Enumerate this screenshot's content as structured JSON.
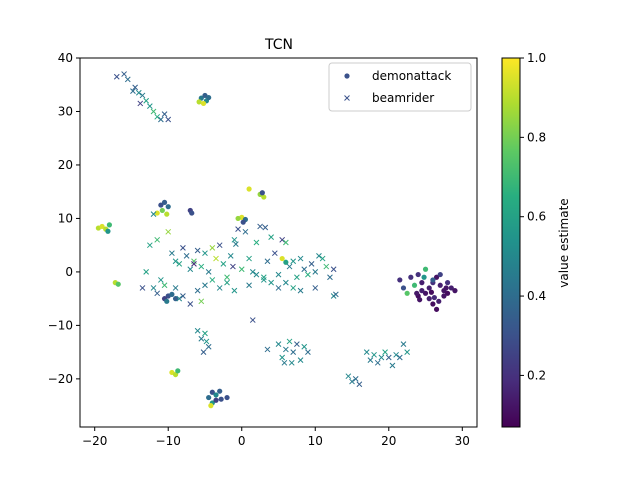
{
  "chart_data": {
    "type": "scatter",
    "title": "TCN",
    "xlabel": "",
    "ylabel": "",
    "xlim": [
      -22,
      32
    ],
    "ylim": [
      -29,
      40
    ],
    "x_ticks": [
      -20,
      -10,
      0,
      10,
      20,
      30
    ],
    "y_ticks": [
      -20,
      -10,
      0,
      10,
      20,
      30,
      40
    ],
    "grid": false,
    "legend_position": "top-right",
    "colorbar": {
      "label": "value estimate",
      "range": [
        0.07,
        1.0
      ],
      "ticks": [
        0.2,
        0.4,
        0.6,
        0.8,
        1.0
      ],
      "tick_labels": [
        "0.2",
        "0.4",
        "0.6",
        "0.8",
        "1.0"
      ],
      "colormap": "viridis"
    },
    "series": [
      {
        "name": "demonattack",
        "marker": "dot",
        "points": [
          [
            -5.5,
            32.5,
            0.45
          ],
          [
            -5.0,
            33.0,
            0.35
          ],
          [
            -4.8,
            32.0,
            0.5
          ],
          [
            -5.8,
            31.8,
            0.9
          ],
          [
            -5.2,
            31.5,
            0.95
          ],
          [
            -4.5,
            32.6,
            0.4
          ],
          [
            -10.5,
            13.0,
            0.35
          ],
          [
            -11.0,
            12.5,
            0.3
          ],
          [
            -10.8,
            11.5,
            0.8
          ],
          [
            -11.5,
            11.0,
            0.95
          ],
          [
            -10.0,
            12.2,
            0.4
          ],
          [
            -10.2,
            10.8,
            0.9
          ],
          [
            -7.0,
            11.5,
            0.25
          ],
          [
            -6.8,
            11.0,
            0.3
          ],
          [
            0.0,
            10.2,
            0.95
          ],
          [
            -0.5,
            10.0,
            0.85
          ],
          [
            0.5,
            9.8,
            0.4
          ],
          [
            0.2,
            9.3,
            0.3
          ],
          [
            1.0,
            15.5,
            0.95
          ],
          [
            2.5,
            14.5,
            0.85
          ],
          [
            3.0,
            14.0,
            0.9
          ],
          [
            2.8,
            14.8,
            0.3
          ],
          [
            -19.5,
            8.2,
            0.9
          ],
          [
            -19.0,
            8.5,
            0.95
          ],
          [
            -18.5,
            8.0,
            0.9
          ],
          [
            -18.0,
            8.8,
            0.7
          ],
          [
            -18.2,
            7.6,
            0.55
          ],
          [
            -17.2,
            -2.0,
            0.9
          ],
          [
            -16.8,
            -2.3,
            0.75
          ],
          [
            -9.5,
            -18.8,
            0.95
          ],
          [
            -9.0,
            -19.2,
            0.9
          ],
          [
            -8.7,
            -18.5,
            0.7
          ],
          [
            -4.0,
            -22.5,
            0.3
          ],
          [
            -3.5,
            -23.0,
            0.5
          ],
          [
            -3.0,
            -22.3,
            0.35
          ],
          [
            -4.5,
            -23.5,
            0.4
          ],
          [
            -2.8,
            -23.8,
            0.3
          ],
          [
            -2.0,
            -23.5,
            0.3
          ],
          [
            -4.0,
            -24.5,
            0.55
          ],
          [
            -4.2,
            -25.0,
            0.95
          ],
          [
            -3.5,
            -24.0,
            0.25
          ],
          [
            -10.0,
            -4.5,
            0.3
          ],
          [
            -10.5,
            -5.0,
            0.25
          ],
          [
            -9.5,
            -4.2,
            0.4
          ],
          [
            -10.2,
            -5.5,
            0.45
          ],
          [
            -9.0,
            -5.0,
            0.35
          ],
          [
            5.5,
            2.5,
            0.95
          ],
          [
            6.0,
            1.8,
            0.6
          ],
          [
            23.0,
            -1.0,
            0.2
          ],
          [
            24.0,
            -0.5,
            0.2
          ],
          [
            25.0,
            0.5,
            0.7
          ],
          [
            24.5,
            -2.0,
            0.15
          ],
          [
            25.5,
            -3.0,
            0.15
          ],
          [
            26.0,
            -2.0,
            0.2
          ],
          [
            26.5,
            -1.0,
            0.12
          ],
          [
            27.0,
            -2.5,
            0.15
          ],
          [
            27.5,
            -3.5,
            0.12
          ],
          [
            28.0,
            -4.0,
            0.1
          ],
          [
            28.5,
            -3.0,
            0.15
          ],
          [
            29.0,
            -3.5,
            0.12
          ],
          [
            25.0,
            -4.0,
            0.12
          ],
          [
            25.5,
            -5.0,
            0.15
          ],
          [
            26.0,
            -6.0,
            0.1
          ],
          [
            26.5,
            -7.0,
            0.1
          ],
          [
            24.0,
            -4.5,
            0.1
          ],
          [
            24.5,
            -3.5,
            0.15
          ],
          [
            23.5,
            -2.5,
            0.7
          ],
          [
            22.5,
            -4.0,
            0.75
          ],
          [
            22.0,
            -3.0,
            0.3
          ],
          [
            21.5,
            -1.5,
            0.2
          ],
          [
            27.0,
            -0.5,
            0.25
          ],
          [
            26.8,
            -5.5,
            0.15
          ],
          [
            28.0,
            -2.0,
            0.2
          ],
          [
            27.5,
            -4.5,
            0.12
          ],
          [
            25.8,
            -3.8,
            0.1
          ],
          [
            26.2,
            -4.8,
            0.18
          ],
          [
            24.8,
            -1.0,
            0.55
          ],
          [
            23.8,
            -4.0,
            0.13
          ],
          [
            26.0,
            -1.5,
            0.35
          ],
          [
            27.8,
            -3.0,
            0.12
          ],
          [
            24.2,
            -5.2,
            0.12
          ]
        ]
      },
      {
        "name": "beamrider",
        "marker": "x",
        "points": [
          [
            -17.0,
            36.5,
            0.3
          ],
          [
            -16.0,
            37.0,
            0.35
          ],
          [
            -15.5,
            36.0,
            0.4
          ],
          [
            -14.5,
            34.5,
            0.35
          ],
          [
            -14.0,
            33.5,
            0.5
          ],
          [
            -13.5,
            33.0,
            0.45
          ],
          [
            -13.0,
            32.0,
            0.6
          ],
          [
            -12.5,
            31.0,
            0.55
          ],
          [
            -12.0,
            30.0,
            0.7
          ],
          [
            -11.5,
            29.0,
            0.65
          ],
          [
            -11.0,
            28.5,
            0.4
          ],
          [
            -10.5,
            29.5,
            0.35
          ],
          [
            -10.0,
            28.5,
            0.3
          ],
          [
            -13.8,
            31.5,
            0.25
          ],
          [
            -14.8,
            33.8,
            0.4
          ],
          [
            -12.0,
            10.8,
            0.5
          ],
          [
            -12.5,
            5.0,
            0.6
          ],
          [
            -11.5,
            6.0,
            0.7
          ],
          [
            -10.0,
            7.5,
            0.85
          ],
          [
            -9.5,
            3.5,
            0.45
          ],
          [
            -9.0,
            2.0,
            0.55
          ],
          [
            -8.0,
            4.5,
            0.3
          ],
          [
            -8.5,
            1.5,
            0.6
          ],
          [
            -7.5,
            3.0,
            0.4
          ],
          [
            -7.0,
            0.5,
            0.5
          ],
          [
            -6.5,
            2.0,
            0.75
          ],
          [
            -6.0,
            4.0,
            0.35
          ],
          [
            -5.5,
            1.0,
            0.65
          ],
          [
            -5.0,
            3.5,
            0.55
          ],
          [
            -4.5,
            0.0,
            0.45
          ],
          [
            -4.0,
            4.5,
            0.85
          ],
          [
            -3.5,
            2.5,
            0.9
          ],
          [
            -3.0,
            5.0,
            0.3
          ],
          [
            -2.5,
            1.5,
            0.6
          ],
          [
            -2.0,
            -1.0,
            0.7
          ],
          [
            -1.5,
            3.0,
            0.5
          ],
          [
            -1.0,
            6.0,
            0.55
          ],
          [
            -0.5,
            8.0,
            0.3
          ],
          [
            0.5,
            7.5,
            0.4
          ],
          [
            1.0,
            2.5,
            0.6
          ],
          [
            1.5,
            0.0,
            0.5
          ],
          [
            2.0,
            5.5,
            0.65
          ],
          [
            2.5,
            8.5,
            0.35
          ],
          [
            3.0,
            -1.5,
            0.55
          ],
          [
            3.5,
            2.0,
            0.4
          ],
          [
            4.0,
            6.5,
            0.6
          ],
          [
            4.5,
            3.5,
            0.3
          ],
          [
            5.0,
            -0.5,
            0.5
          ],
          [
            5.5,
            6.0,
            0.25
          ],
          [
            6.0,
            5.5,
            0.7
          ],
          [
            6.5,
            1.0,
            0.45
          ],
          [
            7.0,
            2.0,
            0.55
          ],
          [
            7.5,
            -1.0,
            0.6
          ],
          [
            8.0,
            2.5,
            0.5
          ],
          [
            8.5,
            0.5,
            0.4
          ],
          [
            9.0,
            -0.5,
            0.65
          ],
          [
            9.5,
            1.5,
            0.35
          ],
          [
            10.0,
            0.0,
            0.45
          ],
          [
            10.5,
            3.0,
            0.5
          ],
          [
            11.0,
            2.5,
            0.6
          ],
          [
            11.5,
            1.0,
            0.7
          ],
          [
            12.0,
            -1.0,
            0.4
          ],
          [
            12.5,
            0.5,
            0.3
          ],
          [
            -13.0,
            0.0,
            0.6
          ],
          [
            -12.0,
            -3.0,
            0.5
          ],
          [
            -11.0,
            -1.5,
            0.55
          ],
          [
            -10.5,
            -2.5,
            0.7
          ],
          [
            -9.0,
            -3.0,
            0.45
          ],
          [
            -8.5,
            -5.0,
            0.5
          ],
          [
            -8.0,
            -4.5,
            0.35
          ],
          [
            -7.0,
            -6.0,
            0.3
          ],
          [
            -6.0,
            -3.5,
            0.4
          ],
          [
            -5.0,
            -2.5,
            0.45
          ],
          [
            -4.0,
            -1.5,
            0.65
          ],
          [
            -3.0,
            -3.0,
            0.5
          ],
          [
            -2.0,
            -2.0,
            0.6
          ],
          [
            -1.0,
            -3.5,
            0.55
          ],
          [
            0.0,
            0.5,
            0.7
          ],
          [
            1.0,
            -2.5,
            0.45
          ],
          [
            2.0,
            -0.5,
            0.5
          ],
          [
            3.0,
            -1.0,
            0.6
          ],
          [
            4.0,
            -2.0,
            0.55
          ],
          [
            5.0,
            -3.0,
            0.4
          ],
          [
            6.0,
            -2.0,
            0.5
          ],
          [
            7.0,
            -3.0,
            0.6
          ],
          [
            8.0,
            -3.5,
            0.45
          ],
          [
            10.0,
            -3.0,
            0.35
          ],
          [
            12.5,
            -4.5,
            0.5
          ],
          [
            12.8,
            -4.2,
            0.4
          ],
          [
            -5.5,
            -5.5,
            0.8
          ],
          [
            1.5,
            -9.0,
            0.3
          ],
          [
            -6.0,
            -11.0,
            0.5
          ],
          [
            -5.5,
            -12.5,
            0.45
          ],
          [
            -5.0,
            -11.5,
            0.6
          ],
          [
            -4.5,
            -14.0,
            0.4
          ],
          [
            -5.2,
            -15.0,
            0.35
          ],
          [
            -4.8,
            -13.0,
            0.55
          ],
          [
            3.5,
            -14.5,
            0.4
          ],
          [
            5.0,
            -13.5,
            0.5
          ],
          [
            5.5,
            -16.0,
            0.55
          ],
          [
            6.0,
            -14.5,
            0.45
          ],
          [
            6.5,
            -13.0,
            0.6
          ],
          [
            7.0,
            -15.0,
            0.4
          ],
          [
            7.5,
            -13.5,
            0.35
          ],
          [
            8.0,
            -16.5,
            0.5
          ],
          [
            8.5,
            -14.0,
            0.55
          ],
          [
            9.0,
            -15.0,
            0.4
          ],
          [
            6.8,
            -17.0,
            0.5
          ],
          [
            5.8,
            -17.0,
            0.45
          ],
          [
            14.5,
            -19.5,
            0.5
          ],
          [
            15.0,
            -20.5,
            0.45
          ],
          [
            15.5,
            -20.0,
            0.4
          ],
          [
            16.0,
            -21.0,
            0.35
          ],
          [
            17.0,
            -15.0,
            0.5
          ],
          [
            17.5,
            -16.5,
            0.45
          ],
          [
            18.0,
            -15.5,
            0.55
          ],
          [
            18.5,
            -17.0,
            0.4
          ],
          [
            19.0,
            -16.0,
            0.5
          ],
          [
            19.5,
            -15.0,
            0.6
          ],
          [
            20.0,
            -16.0,
            0.35
          ],
          [
            20.5,
            -17.5,
            0.45
          ],
          [
            21.0,
            -15.5,
            0.5
          ],
          [
            21.5,
            -16.0,
            0.4
          ],
          [
            22.0,
            -13.5,
            0.45
          ],
          [
            22.5,
            -15.0,
            0.55
          ],
          [
            -13.5,
            -3.0,
            0.3
          ],
          [
            -11.5,
            -4.0,
            0.35
          ],
          [
            -6.5,
            1.5,
            0.2
          ],
          [
            -1.2,
            1.0,
            0.25
          ],
          [
            3.2,
            8.3,
            0.35
          ],
          [
            -0.8,
            5.2,
            0.45
          ]
        ]
      }
    ]
  }
}
